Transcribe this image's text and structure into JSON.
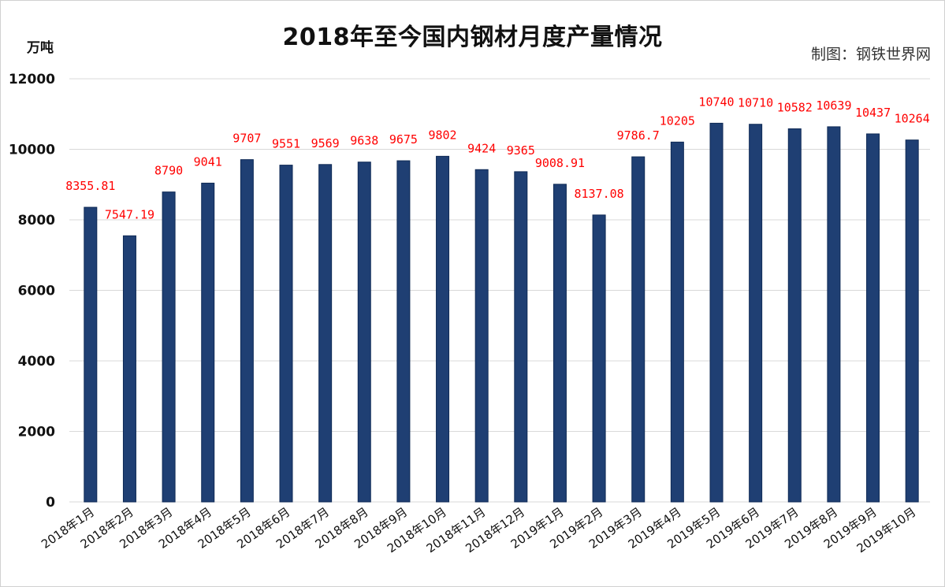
{
  "title": "2018年至今国内钢材月度产量情况",
  "unit_label": "万吨",
  "credit": "制图：钢铁世界网",
  "colors": {
    "bar": "#1f3f73",
    "bar_edge": "#0f2a55",
    "data_label": "#ff0000",
    "grid": "#d9d9d9"
  },
  "chart_data": {
    "type": "bar",
    "title": "2018年至今国内钢材月度产量情况",
    "ylabel": "万吨",
    "xlabel": "",
    "ylim": [
      0,
      12000
    ],
    "yticks": [
      "0",
      "2000",
      "4000",
      "6000",
      "8000",
      "10000",
      "12000"
    ],
    "grid": true,
    "legend": "none",
    "categories": [
      "2018年1月",
      "2018年2月",
      "2018年3月",
      "2018年4月",
      "2018年5月",
      "2018年6月",
      "2018年7月",
      "2018年8月",
      "2018年9月",
      "2018年10月",
      "2018年11月",
      "2018年12月",
      "2019年1月",
      "2019年2月",
      "2019年3月",
      "2019年4月",
      "2019年5月",
      "2019年6月",
      "2019年7月",
      "2019年8月",
      "2019年9月",
      "2019年10月"
    ],
    "values": [
      8355.81,
      7547.19,
      8790,
      9041,
      9707,
      9551,
      9569,
      9638,
      9675,
      9802,
      9424,
      9365,
      9008.91,
      8137.08,
      9786.7,
      10205,
      10740,
      10710,
      10582,
      10639,
      10437,
      10264
    ],
    "data_labels": [
      "8355.81",
      "7547.19",
      "8790",
      "9041",
      "9707",
      "9551",
      "9569",
      "9638",
      "9675",
      "9802",
      "9424",
      "9365",
      "9008.91",
      "8137.08",
      "9786.7",
      "10205",
      "10740",
      "10710",
      "10582",
      "10639",
      "10437",
      "10264"
    ]
  }
}
